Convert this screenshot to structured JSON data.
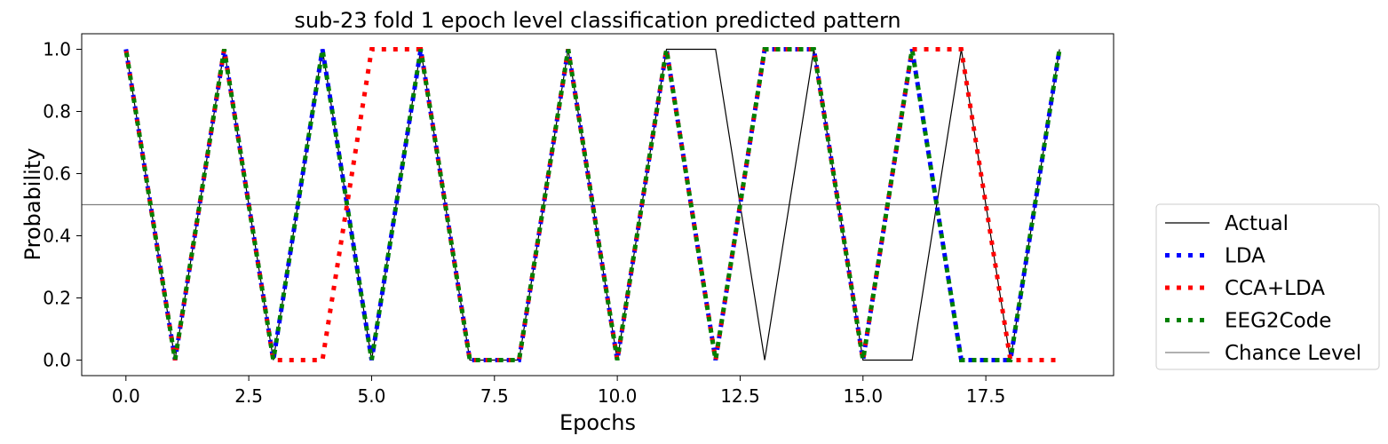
{
  "chart_data": {
    "type": "line",
    "title": "sub-23 fold 1 epoch level classification predicted pattern",
    "xlabel": "Epochs",
    "ylabel": "Probability",
    "xlim": [
      -0.9,
      20.1
    ],
    "ylim": [
      -0.05,
      1.05
    ],
    "xticks": [
      0.0,
      2.5,
      5.0,
      7.5,
      10.0,
      12.5,
      15.0,
      17.5
    ],
    "xtick_labels": [
      "0.0",
      "2.5",
      "5.0",
      "7.5",
      "10.0",
      "12.5",
      "15.0",
      "17.5"
    ],
    "yticks": [
      0.0,
      0.2,
      0.4,
      0.6,
      0.8,
      1.0
    ],
    "ytick_labels": [
      "0.0",
      "0.2",
      "0.4",
      "0.6",
      "0.8",
      "1.0"
    ],
    "grid": false,
    "legend_position": "right, outside plot, lower",
    "series": [
      {
        "name": "Actual",
        "color": "#000000",
        "style": "solid-thin",
        "points": [
          [
            0,
            1
          ],
          [
            1,
            0
          ],
          [
            2,
            1
          ],
          [
            3,
            0
          ],
          [
            4,
            1
          ],
          [
            5,
            0
          ],
          [
            6,
            1
          ],
          [
            7,
            0
          ],
          [
            8,
            0
          ],
          [
            9,
            1
          ],
          [
            10,
            0
          ],
          [
            11,
            1
          ],
          [
            12,
            1
          ],
          [
            13,
            0
          ],
          [
            14,
            1
          ],
          [
            15,
            0
          ],
          [
            16,
            0
          ],
          [
            17,
            1
          ],
          [
            18,
            0
          ],
          [
            19,
            1
          ]
        ]
      },
      {
        "name": "LDA",
        "color": "#0000ff",
        "style": "dotted-thick",
        "points": [
          [
            0,
            1
          ],
          [
            1,
            0
          ],
          [
            2,
            1
          ],
          [
            3,
            0
          ],
          [
            4,
            1
          ],
          [
            5,
            0
          ],
          [
            6,
            1
          ],
          [
            7,
            0
          ],
          [
            8,
            0
          ],
          [
            9,
            1
          ],
          [
            10,
            0
          ],
          [
            11,
            1
          ],
          [
            12,
            0
          ],
          [
            13,
            1
          ],
          [
            14,
            1
          ],
          [
            15,
            0
          ],
          [
            16,
            1
          ],
          [
            17,
            0
          ],
          [
            18,
            0
          ],
          [
            19,
            1
          ]
        ]
      },
      {
        "name": "CCA+LDA",
        "color": "#ff0000",
        "style": "dotted-thick",
        "points": [
          [
            0,
            1
          ],
          [
            1,
            0
          ],
          [
            2,
            1
          ],
          [
            3,
            0
          ],
          [
            4,
            0
          ],
          [
            5,
            1
          ],
          [
            6,
            1
          ],
          [
            7,
            0
          ],
          [
            8,
            0
          ],
          [
            9,
            1
          ],
          [
            10,
            0
          ],
          [
            11,
            1
          ],
          [
            12,
            0
          ],
          [
            13,
            1
          ],
          [
            14,
            1
          ],
          [
            15,
            0
          ],
          [
            16,
            1
          ],
          [
            17,
            1
          ],
          [
            18,
            0
          ],
          [
            19,
            0
          ]
        ]
      },
      {
        "name": "EEG2Code",
        "color": "#008000",
        "style": "dotted-thick",
        "points": [
          [
            0,
            1
          ],
          [
            1,
            0
          ],
          [
            2,
            1
          ],
          [
            3,
            0
          ],
          [
            4,
            1
          ],
          [
            5,
            0
          ],
          [
            6,
            1
          ],
          [
            7,
            0
          ],
          [
            8,
            0
          ],
          [
            9,
            1
          ],
          [
            10,
            0
          ],
          [
            11,
            1
          ],
          [
            12,
            0
          ],
          [
            13,
            1
          ],
          [
            14,
            1
          ],
          [
            15,
            0
          ],
          [
            16,
            1
          ],
          [
            17,
            0
          ],
          [
            18,
            0
          ],
          [
            19,
            1
          ]
        ]
      }
    ],
    "reference_line": {
      "name": "Chance Level",
      "y": 0.5,
      "color": "#808080"
    }
  }
}
